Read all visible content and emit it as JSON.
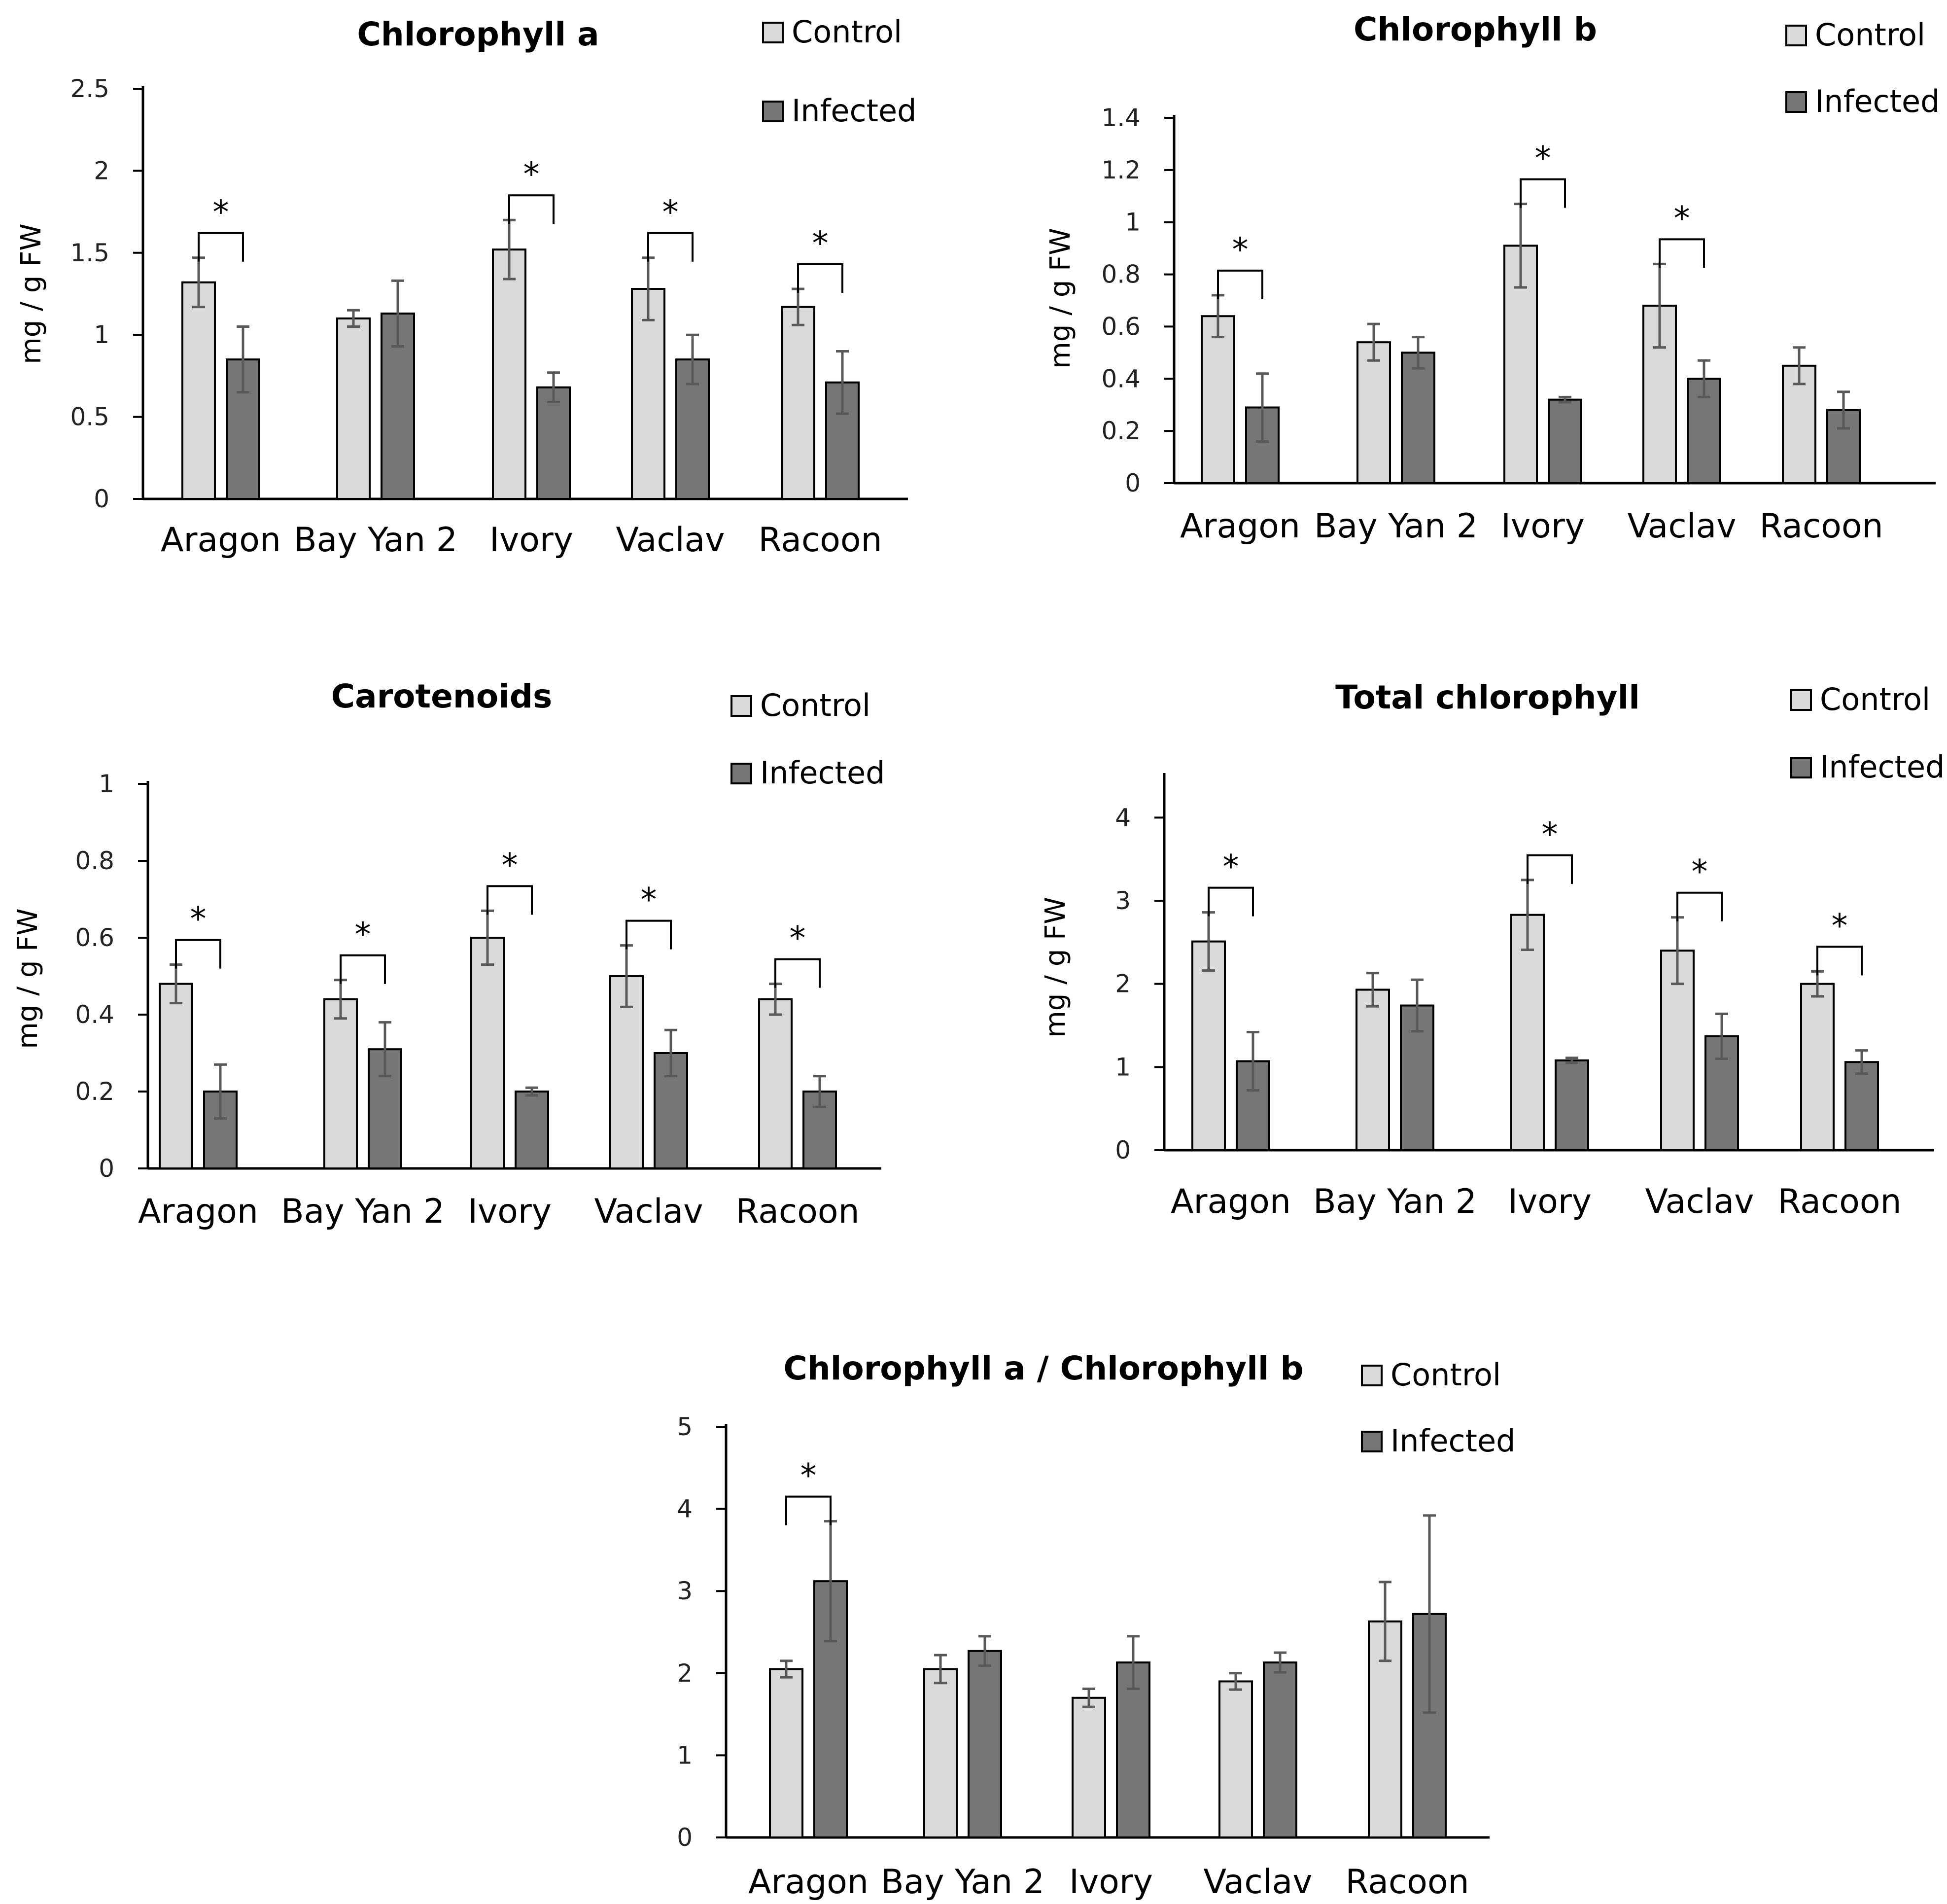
{
  "figure": {
    "ylabel": "mg / g FW"
  },
  "colors": {
    "control": "#d9d9d9",
    "infected": "#767676",
    "error": "#595959",
    "axis": "#000000"
  },
  "chart_data": [
    {
      "type": "bar",
      "title": "Chlorophyll a",
      "ylabel": "mg / g FW",
      "ylim": [
        0,
        2.5
      ],
      "yticks": [
        0,
        0.5,
        1,
        1.5,
        2,
        2.5
      ],
      "ytick_labels": [
        "0",
        "0.5",
        "1",
        "1.5",
        "2",
        "2.5"
      ],
      "categories": [
        "Aragon",
        "Bay Yan 2",
        "Ivory",
        "Vaclav",
        "Racoon"
      ],
      "series": [
        {
          "name": "Control",
          "values": [
            1.32,
            1.1,
            1.52,
            1.28,
            1.17
          ],
          "errors": [
            0.15,
            0.05,
            0.18,
            0.19,
            0.11
          ]
        },
        {
          "name": "Infected",
          "values": [
            0.85,
            1.13,
            0.68,
            0.85,
            0.71
          ],
          "errors": [
            0.2,
            0.2,
            0.09,
            0.15,
            0.19
          ]
        }
      ],
      "significance": [
        true,
        false,
        true,
        true,
        true
      ],
      "star_label": "*",
      "legend": [
        "Control",
        "Infected"
      ]
    },
    {
      "type": "bar",
      "title": "Chlorophyll b",
      "ylabel": "mg / g FW",
      "ylim": [
        0,
        1.4
      ],
      "yticks": [
        0,
        0.2,
        0.4,
        0.6,
        0.8,
        1,
        1.2,
        1.4
      ],
      "ytick_labels": [
        "0",
        "0.2",
        "0.4",
        "0.6",
        "0.8",
        "1",
        "1.2",
        "1.4"
      ],
      "categories": [
        "Aragon",
        "Bay Yan 2",
        "Ivory",
        "Vaclav",
        "Racoon"
      ],
      "series": [
        {
          "name": "Control",
          "values": [
            0.64,
            0.54,
            0.91,
            0.68,
            0.45
          ],
          "errors": [
            0.08,
            0.07,
            0.16,
            0.16,
            0.07
          ]
        },
        {
          "name": "Infected",
          "values": [
            0.29,
            0.5,
            0.32,
            0.4,
            0.28
          ],
          "errors": [
            0.13,
            0.06,
            0.01,
            0.07,
            0.07
          ]
        }
      ],
      "significance": [
        true,
        false,
        true,
        true,
        false
      ],
      "star_label": "*",
      "legend": [
        "Control",
        "Infected"
      ]
    },
    {
      "type": "bar",
      "title": "Carotenoids",
      "ylabel": "mg / g FW",
      "ylim": [
        0,
        1
      ],
      "yticks": [
        0,
        0.2,
        0.4,
        0.6,
        0.8,
        1
      ],
      "ytick_labels": [
        "0",
        "0.2",
        "0.4",
        "0.6",
        "0.8",
        "1"
      ],
      "categories": [
        "Aragon",
        "Bay Yan 2",
        "Ivory",
        "Vaclav",
        "Racoon"
      ],
      "series": [
        {
          "name": "Control",
          "values": [
            0.48,
            0.44,
            0.6,
            0.5,
            0.44
          ],
          "errors": [
            0.05,
            0.05,
            0.07,
            0.08,
            0.04
          ]
        },
        {
          "name": "Infected",
          "values": [
            0.2,
            0.31,
            0.2,
            0.3,
            0.2
          ],
          "errors": [
            0.07,
            0.07,
            0.01,
            0.06,
            0.04
          ]
        }
      ],
      "significance": [
        true,
        true,
        true,
        true,
        true
      ],
      "star_label": "*",
      "legend": [
        "Control",
        "Infected"
      ]
    },
    {
      "type": "bar",
      "title": "Total chlorophyll",
      "ylabel": "mg / g FW",
      "ylim": [
        0,
        4.5
      ],
      "yticks": [
        0,
        1,
        2,
        3,
        4
      ],
      "ytick_labels": [
        "0",
        "1",
        "2",
        "3",
        "4"
      ],
      "categories": [
        "Aragon",
        "Bay Yan 2",
        "Ivory",
        "Vaclav",
        "Racoon"
      ],
      "series": [
        {
          "name": "Control",
          "values": [
            2.51,
            1.93,
            2.83,
            2.4,
            2.0
          ],
          "errors": [
            0.35,
            0.2,
            0.42,
            0.4,
            0.15
          ]
        },
        {
          "name": "Infected",
          "values": [
            1.07,
            1.74,
            1.08,
            1.37,
            1.06
          ],
          "errors": [
            0.35,
            0.31,
            0.03,
            0.27,
            0.14
          ]
        }
      ],
      "significance": [
        true,
        false,
        true,
        true,
        true
      ],
      "star_label": "*",
      "legend": [
        "Control",
        "Infected"
      ]
    },
    {
      "type": "bar",
      "title": "Chlorophyll a / Chlorophyll b",
      "ylabel": "",
      "ylim": [
        0,
        5
      ],
      "yticks": [
        0,
        1,
        2,
        3,
        4,
        5
      ],
      "ytick_labels": [
        "0",
        "1",
        "2",
        "3",
        "4",
        "5"
      ],
      "categories": [
        "Aragon",
        "Bay Yan 2",
        "Ivory",
        "Vaclav",
        "Racoon"
      ],
      "series": [
        {
          "name": "Control",
          "values": [
            2.05,
            2.05,
            1.7,
            1.9,
            2.63
          ],
          "errors": [
            0.1,
            0.17,
            0.11,
            0.1,
            0.48
          ]
        },
        {
          "name": "Infected",
          "values": [
            3.12,
            2.27,
            2.13,
            2.13,
            2.72
          ],
          "errors": [
            0.73,
            0.18,
            0.32,
            0.12,
            1.2
          ]
        }
      ],
      "significance": [
        true,
        false,
        false,
        false,
        false
      ],
      "star_label": "*",
      "legend": [
        "Control",
        "Infected"
      ]
    }
  ]
}
